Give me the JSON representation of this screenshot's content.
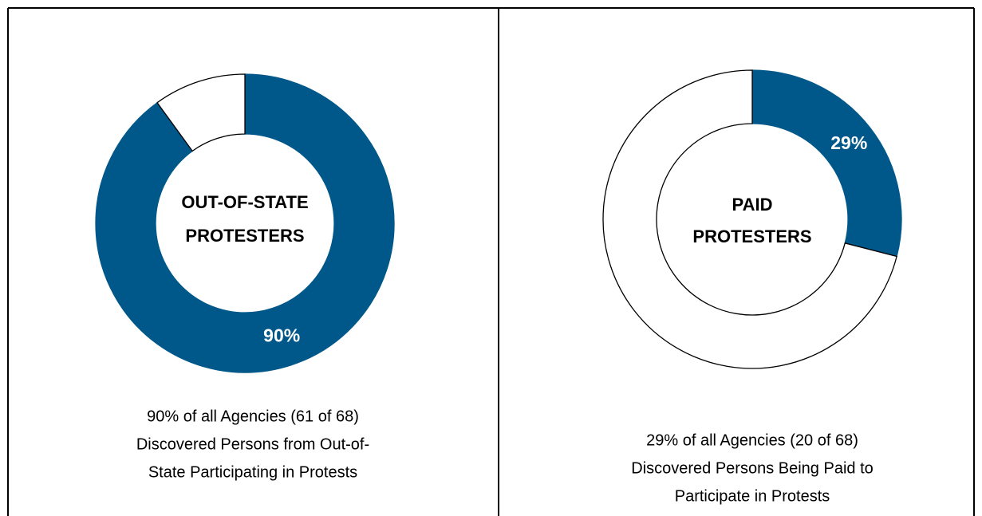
{
  "chart_data": [
    {
      "type": "donut",
      "center_label": [
        "OUT-OF-STATE",
        "PROTESTERS"
      ],
      "values": [
        90,
        10
      ],
      "value_labels": [
        "90%",
        null
      ],
      "colors": [
        "#00588a",
        "#ffffff"
      ],
      "caption": [
        "90% of all Agencies (61 of 68)",
        "Discovered Persons from Out-of-",
        "State Participating in Protests"
      ]
    },
    {
      "type": "donut",
      "center_label": [
        "PAID",
        "PROTESTERS"
      ],
      "values": [
        29,
        71
      ],
      "value_labels": [
        "29%",
        null
      ],
      "colors": [
        "#00588a",
        "#ffffff"
      ],
      "caption": [
        "29% of all Agencies (20 of 68)",
        "Discovered Persons Being Paid to",
        "Participate in Protests"
      ]
    }
  ]
}
